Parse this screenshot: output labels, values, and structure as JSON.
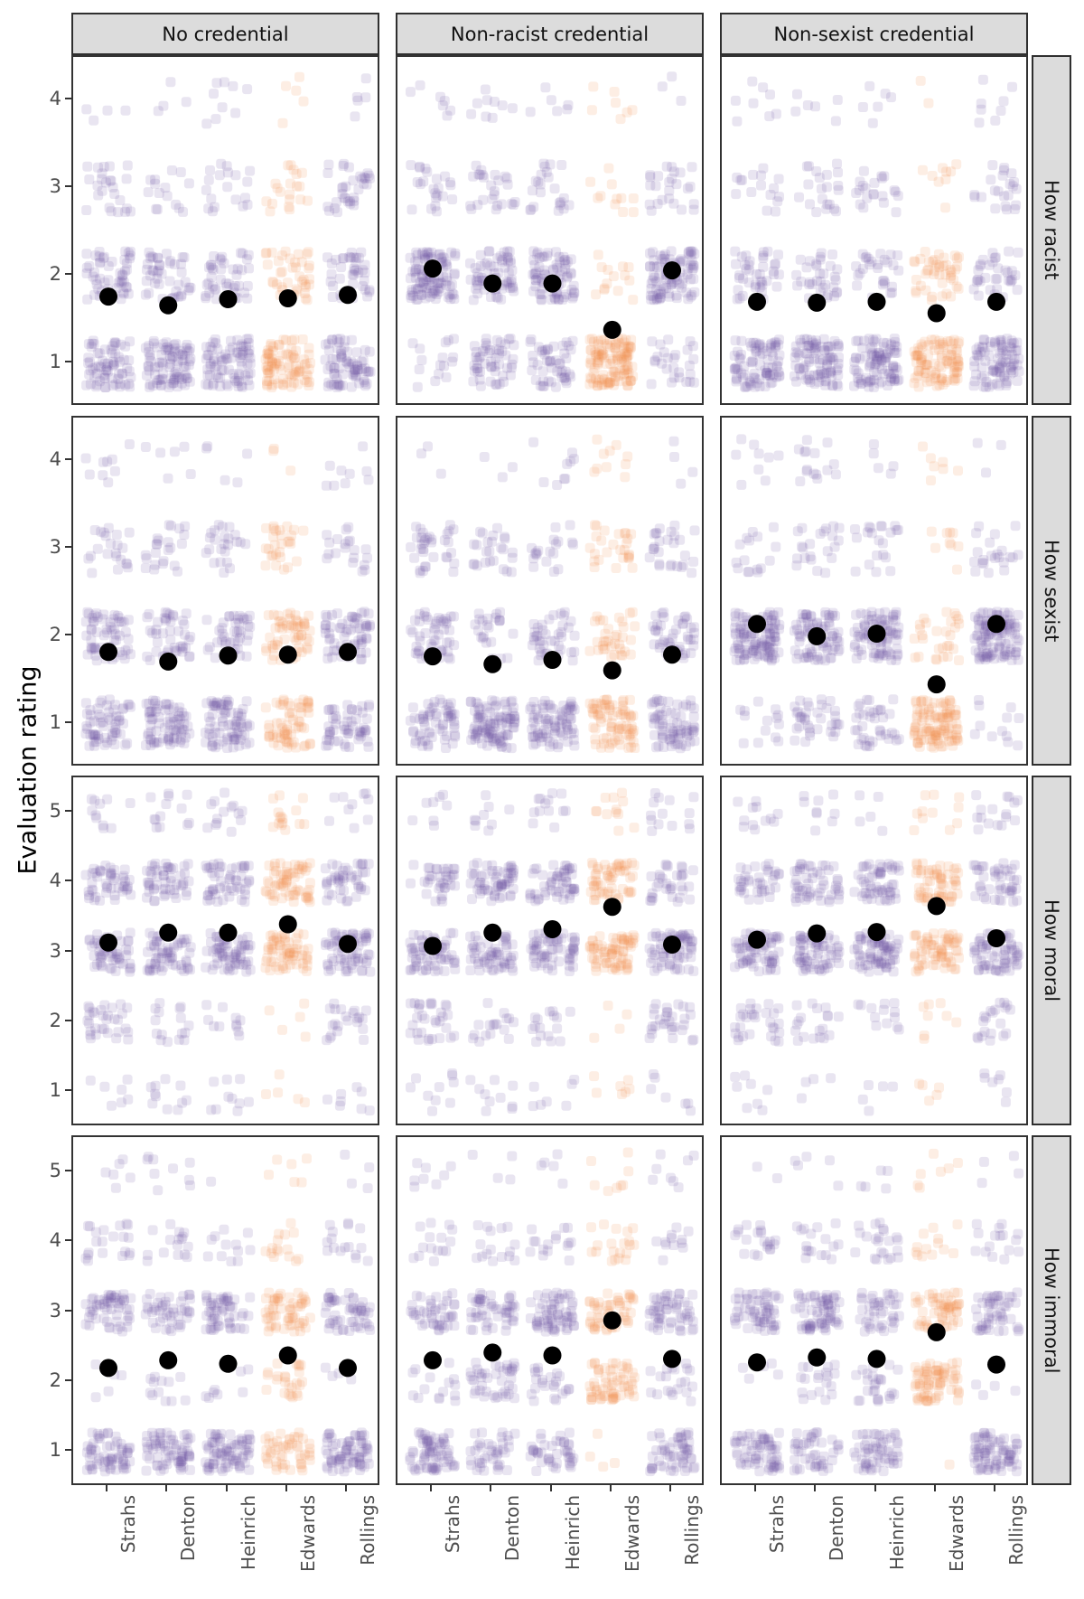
{
  "figure": {
    "ylabel": "Evaluation rating"
  },
  "chart_data": {
    "type": "scatter",
    "subtype": "jittered-dot-plot-with-means",
    "title": "",
    "ylabel": "Evaluation rating",
    "legend": "none",
    "grid": "off",
    "columns": [
      "No credential",
      "Non-racist credential",
      "Non-sexist credential"
    ],
    "categories": [
      "Strahs",
      "Denton",
      "Heinrich",
      "Edwards",
      "Rollings"
    ],
    "highlight_category": "Edwards",
    "mean_marker": "black dot = mean rating",
    "points_per_cell": 150,
    "point_opacity": 0.15,
    "colors": {
      "default_point": "#6a51a3",
      "highlight_point": "#ef8a47",
      "mean_dot": "#000000",
      "strip_bg": "#dcdcdc",
      "border": "#333333",
      "axis_text": "#4d4d4d"
    },
    "row_facets": [
      {
        "label": "How racist",
        "ticks": [
          1,
          2,
          3,
          4
        ],
        "ylim": [
          0.5,
          4.5
        ],
        "means": [
          [
            1.76,
            1.66,
            1.73,
            1.74,
            1.78
          ],
          [
            2.08,
            1.91,
            1.91,
            1.38,
            2.06
          ],
          [
            1.7,
            1.69,
            1.7,
            1.57,
            1.7
          ]
        ]
      },
      {
        "label": "How sexist",
        "ticks": [
          1,
          2,
          3,
          4
        ],
        "ylim": [
          0.5,
          4.5
        ],
        "means": [
          [
            1.82,
            1.71,
            1.78,
            1.79,
            1.82
          ],
          [
            1.77,
            1.68,
            1.73,
            1.61,
            1.79
          ],
          [
            2.14,
            2.0,
            2.03,
            1.45,
            2.14
          ]
        ]
      },
      {
        "label": "How moral",
        "ticks": [
          1,
          2,
          3,
          4,
          5
        ],
        "ylim": [
          0.5,
          5.5
        ],
        "means": [
          [
            3.14,
            3.28,
            3.28,
            3.4,
            3.12
          ],
          [
            3.09,
            3.28,
            3.33,
            3.65,
            3.11
          ],
          [
            3.18,
            3.27,
            3.29,
            3.66,
            3.2
          ]
        ]
      },
      {
        "label": "How immoral",
        "ticks": [
          1,
          2,
          3,
          4,
          5
        ],
        "ylim": [
          0.5,
          5.5
        ],
        "means": [
          [
            2.2,
            2.31,
            2.26,
            2.38,
            2.2
          ],
          [
            2.31,
            2.42,
            2.38,
            2.88,
            2.33
          ],
          [
            2.28,
            2.35,
            2.33,
            2.71,
            2.25
          ]
        ]
      }
    ]
  }
}
